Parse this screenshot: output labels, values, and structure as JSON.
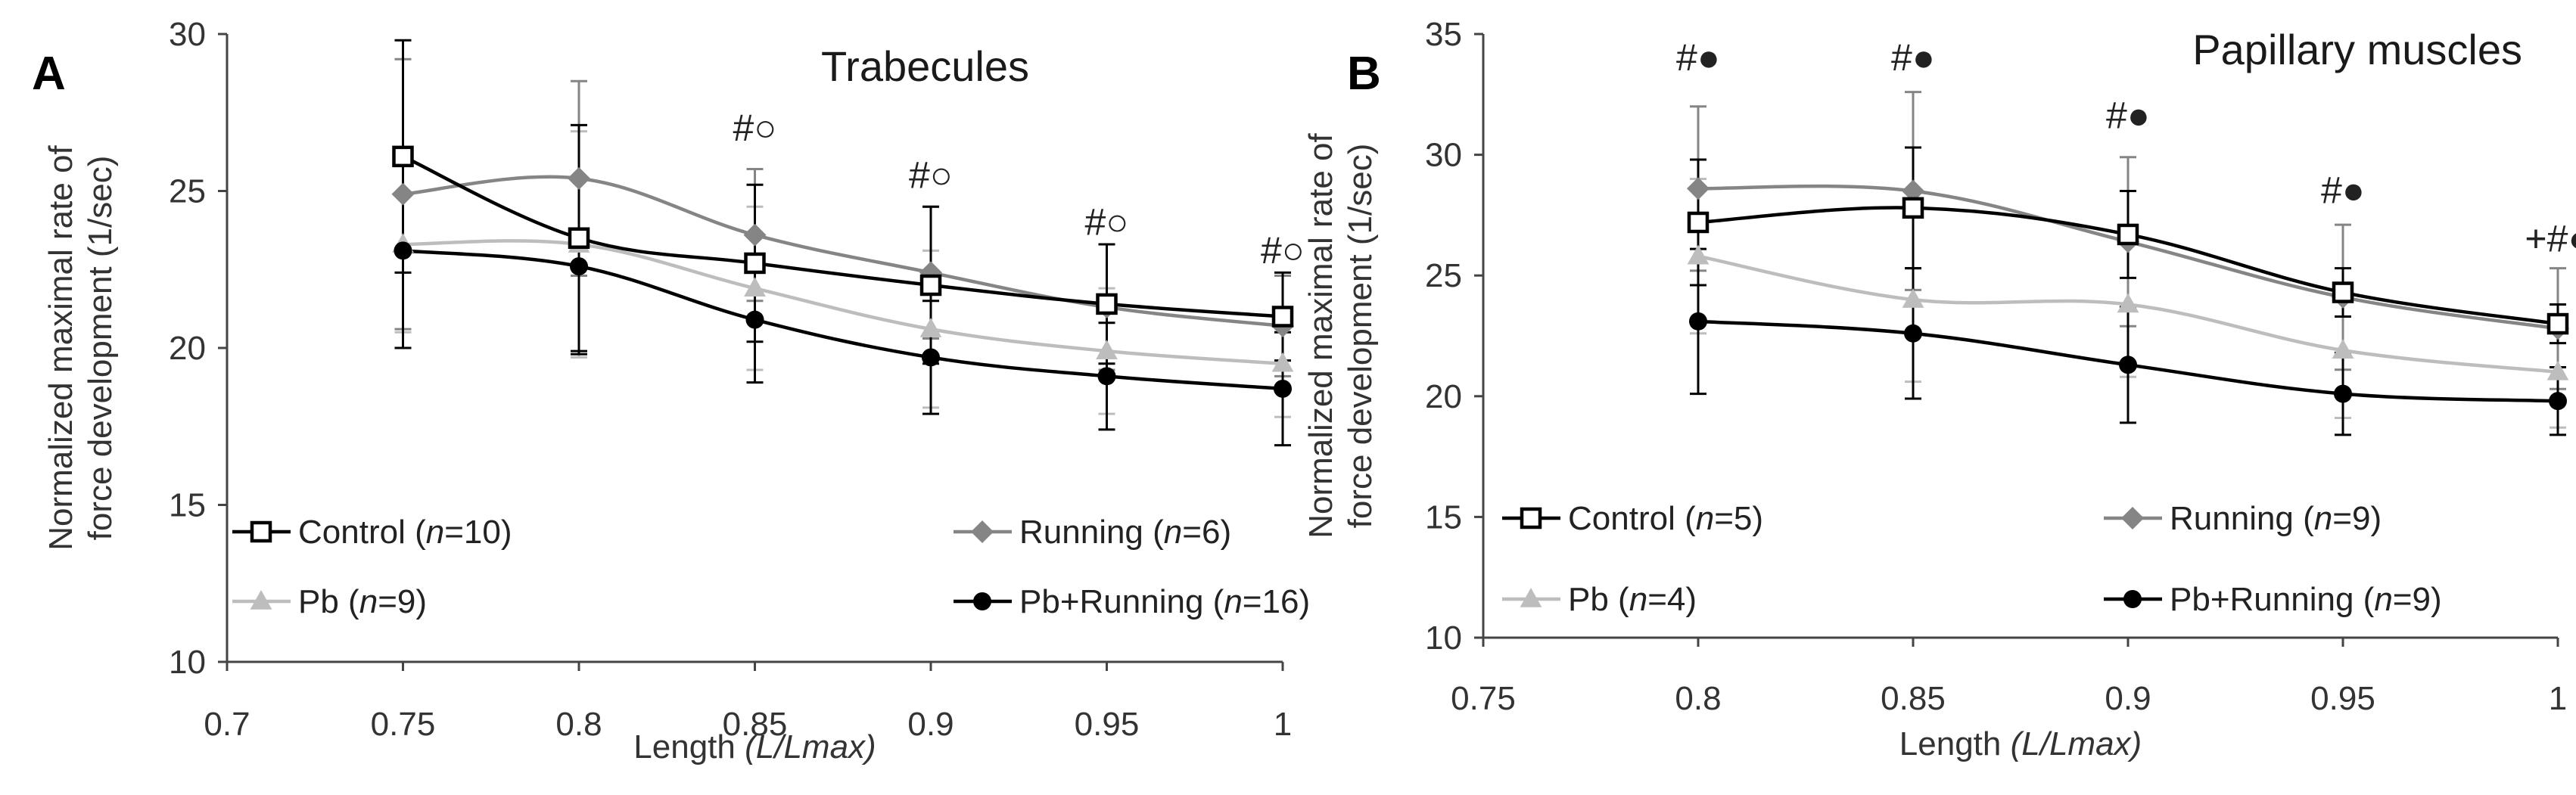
{
  "chart_data": [
    {
      "type": "line",
      "panel_label": "A",
      "title": "Trabecules",
      "ylabel": "Normalized maximal rate of force development  (1/sec)",
      "ylabel_lines": [
        "Normalized maximal rate of",
        "force development  (1/sec)"
      ],
      "xlabel": "Length",
      "xlabel_italic": "(L/Lmax)",
      "xlim": [
        0.7,
        1.0
      ],
      "ylim": [
        10,
        30
      ],
      "x_ticks": [
        0.7,
        0.75,
        0.8,
        0.85,
        0.9,
        0.95,
        1.0
      ],
      "x_tick_labels": [
        "0.7",
        "0.75",
        "0.8",
        "0.85",
        "0.9",
        "0.95",
        "1"
      ],
      "y_ticks": [
        10,
        15,
        20,
        25,
        30
      ],
      "y_tick_labels": [
        "10",
        "15",
        "20",
        "25",
        "30"
      ],
      "series": [
        {
          "key": "control",
          "name": "Control",
          "n_text": "=10",
          "marker": "square-open",
          "color": "#000000",
          "x": [
            0.75,
            0.8,
            0.85,
            0.9,
            0.95,
            1.0
          ],
          "values": [
            26.1,
            23.5,
            22.7,
            22.0,
            21.4,
            21.0
          ],
          "errors": [
            3.7,
            3.6,
            2.5,
            2.5,
            1.9,
            1.4
          ]
        },
        {
          "key": "running",
          "name": "Running",
          "n_text": "=6",
          "marker": "diamond",
          "color": "#858585",
          "x": [
            0.75,
            0.8,
            0.85,
            0.9,
            0.95,
            1.0
          ],
          "values": [
            24.9,
            25.4,
            23.6,
            22.4,
            21.3,
            20.7
          ],
          "errors": [
            4.3,
            3.1,
            2.1,
            2.1,
            2.0,
            1.6
          ]
        },
        {
          "key": "pb",
          "name": "Pb",
          "n_text": "=9",
          "marker": "triangle",
          "color": "#bdbdbd",
          "x": [
            0.75,
            0.8,
            0.85,
            0.9,
            0.95,
            1.0
          ],
          "values": [
            23.3,
            23.3,
            21.9,
            20.6,
            19.9,
            19.5
          ],
          "errors": [
            2.8,
            3.6,
            2.6,
            2.5,
            2.0,
            1.7
          ]
        },
        {
          "key": "pbrun",
          "name": "Pb+Running",
          "n_text": "=16",
          "marker": "circle",
          "color": "#000000",
          "x": [
            0.75,
            0.8,
            0.85,
            0.9,
            0.95,
            1.0
          ],
          "values": [
            23.1,
            22.6,
            20.9,
            19.7,
            19.1,
            18.7
          ],
          "errors": [
            3.1,
            2.8,
            2.0,
            1.8,
            1.7,
            1.8
          ]
        }
      ],
      "annotations": [
        {
          "x": 0.85,
          "y": 26.6,
          "text": "#○"
        },
        {
          "x": 0.9,
          "y": 25.1,
          "text": "#○"
        },
        {
          "x": 0.95,
          "y": 23.6,
          "text": "#○"
        },
        {
          "x": 1.0,
          "y": 22.7,
          "text": "#○"
        }
      ]
    },
    {
      "type": "line",
      "panel_label": "B",
      "title": "Papillary muscles",
      "ylabel": "Normalized maximal rate of force development  (1/sec)",
      "ylabel_lines": [
        "Normalized maximal rate of",
        "force development  (1/sec)"
      ],
      "xlabel": "Length",
      "xlabel_italic": "(L/Lmax)",
      "xlim": [
        0.75,
        1.0
      ],
      "ylim": [
        10,
        35
      ],
      "x_ticks": [
        0.75,
        0.8,
        0.85,
        0.9,
        0.95,
        1.0
      ],
      "x_tick_labels": [
        "0.75",
        "0.8",
        "0.85",
        "0.9",
        "0.95",
        "1"
      ],
      "y_ticks": [
        10,
        15,
        20,
        25,
        30,
        35
      ],
      "y_tick_labels": [
        "10",
        "15",
        "20",
        "25",
        "30",
        "35"
      ],
      "series": [
        {
          "key": "control",
          "name": "Control",
          "n_text": "=5",
          "marker": "square-open",
          "color": "#000000",
          "x": [
            0.8,
            0.85,
            0.9,
            0.95,
            1.0
          ],
          "values": [
            27.2,
            27.8,
            26.7,
            24.3,
            23.0
          ],
          "errors": [
            2.6,
            2.5,
            1.8,
            1.0,
            0.8
          ]
        },
        {
          "key": "running",
          "name": "Running",
          "n_text": "=9",
          "marker": "diamond",
          "color": "#858585",
          "x": [
            0.8,
            0.85,
            0.9,
            0.95,
            1.0
          ],
          "values": [
            28.6,
            28.5,
            26.4,
            24.1,
            22.8
          ],
          "errors": [
            3.4,
            4.1,
            3.5,
            3.0,
            2.5
          ]
        },
        {
          "key": "pb",
          "name": "Pb",
          "n_text": "=4",
          "marker": "triangle",
          "color": "#bdbdbd",
          "x": [
            0.8,
            0.85,
            0.9,
            0.95,
            1.0
          ],
          "values": [
            25.8,
            24.0,
            23.8,
            21.9,
            21.0
          ],
          "errors": [
            3.2,
            3.4,
            3.0,
            2.8,
            2.3
          ]
        },
        {
          "key": "pbrun",
          "name": "Pb+Running",
          "n_text": "=9",
          "marker": "circle",
          "color": "#000000",
          "x": [
            0.8,
            0.85,
            0.9,
            0.95,
            1.0
          ],
          "values": [
            23.1,
            22.6,
            21.3,
            20.1,
            19.8
          ],
          "errors": [
            3.0,
            2.7,
            2.4,
            1.7,
            1.4
          ]
        }
      ],
      "annotations": [
        {
          "x": 0.8,
          "y": 33.5,
          "text": "#●"
        },
        {
          "x": 0.85,
          "y": 33.5,
          "text": "#●"
        },
        {
          "x": 0.9,
          "y": 31.1,
          "text": "#●"
        },
        {
          "x": 0.95,
          "y": 28.0,
          "text": "#●"
        },
        {
          "x": 1.0,
          "y": 26.0,
          "text": "+#●"
        }
      ]
    }
  ],
  "legend_n_symbol": "n"
}
